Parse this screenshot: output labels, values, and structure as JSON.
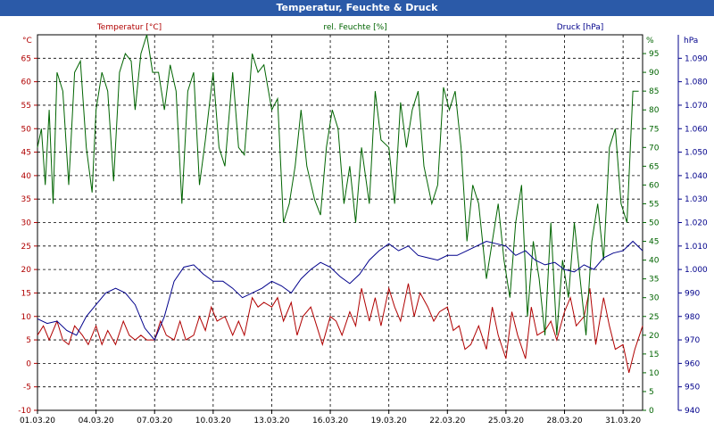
{
  "window": {
    "title": "Temperatur, Feuchte & Druck"
  },
  "colors": {
    "temperature": "#b00000",
    "humidity": "#006400",
    "pressure": "#00008b",
    "grid": "#000000"
  },
  "chart_data": {
    "type": "line",
    "title": "Temperatur, Feuchte & Druck",
    "grid": true,
    "x_ticks": [
      "01.03.20",
      "04.03.20",
      "07.03.20",
      "10.03.20",
      "13.03.20",
      "16.03.20",
      "19.03.20",
      "22.03.20",
      "25.03.20",
      "28.03.20",
      "31.03.20"
    ],
    "x_range": [
      0,
      31
    ],
    "axes": {
      "temperature": {
        "label": "Temperatur [°C]",
        "unit": "°C",
        "range": [
          -10,
          70
        ],
        "ticks": [
          -10,
          -5,
          0,
          5,
          10,
          15,
          20,
          25,
          30,
          35,
          40,
          45,
          50,
          55,
          60,
          65
        ]
      },
      "humidity": {
        "label": "rel. Feuchte [%]",
        "unit": "%",
        "range": [
          0,
          100
        ],
        "ticks": [
          0,
          5,
          10,
          15,
          20,
          25,
          30,
          35,
          40,
          45,
          50,
          55,
          60,
          65,
          70,
          75,
          80,
          85,
          90,
          95
        ]
      },
      "pressure": {
        "label": "Druck [hPa]",
        "unit": "hPa",
        "range": [
          940,
          1100
        ],
        "ticks": [
          "940",
          "950",
          "960",
          "970",
          "980",
          "990",
          "1.000",
          "1.010",
          "1.020",
          "1.030",
          "1.040",
          "1.050",
          "1.060",
          "1.070",
          "1.080",
          "1.090"
        ]
      }
    },
    "series": [
      {
        "name": "Temperatur [°C]",
        "axis": "temperature",
        "points": [
          [
            0,
            6
          ],
          [
            0.3,
            8
          ],
          [
            0.6,
            5
          ],
          [
            1,
            9
          ],
          [
            1.3,
            5
          ],
          [
            1.6,
            4
          ],
          [
            1.9,
            8
          ],
          [
            2.3,
            6
          ],
          [
            2.6,
            4
          ],
          [
            3,
            8
          ],
          [
            3.3,
            4
          ],
          [
            3.6,
            7
          ],
          [
            4,
            4
          ],
          [
            4.4,
            9
          ],
          [
            4.7,
            6
          ],
          [
            5,
            5
          ],
          [
            5.3,
            6
          ],
          [
            5.6,
            5
          ],
          [
            6,
            5
          ],
          [
            6.3,
            9
          ],
          [
            6.6,
            6
          ],
          [
            7,
            5
          ],
          [
            7.3,
            9
          ],
          [
            7.6,
            5
          ],
          [
            8,
            6
          ],
          [
            8.3,
            10
          ],
          [
            8.6,
            7
          ],
          [
            8.9,
            12
          ],
          [
            9.2,
            9
          ],
          [
            9.6,
            10
          ],
          [
            10,
            6
          ],
          [
            10.3,
            9
          ],
          [
            10.6,
            6
          ],
          [
            11,
            14
          ],
          [
            11.3,
            12
          ],
          [
            11.6,
            13
          ],
          [
            12,
            12
          ],
          [
            12.3,
            14
          ],
          [
            12.6,
            9
          ],
          [
            13,
            13
          ],
          [
            13.3,
            6
          ],
          [
            13.6,
            10
          ],
          [
            14,
            12
          ],
          [
            14.3,
            8
          ],
          [
            14.6,
            4
          ],
          [
            15,
            10
          ],
          [
            15.3,
            9
          ],
          [
            15.6,
            6
          ],
          [
            16,
            11
          ],
          [
            16.3,
            8
          ],
          [
            16.6,
            16
          ],
          [
            17,
            9
          ],
          [
            17.3,
            14
          ],
          [
            17.6,
            8
          ],
          [
            18,
            16
          ],
          [
            18.3,
            12
          ],
          [
            18.6,
            9
          ],
          [
            19,
            17
          ],
          [
            19.3,
            10
          ],
          [
            19.6,
            15
          ],
          [
            20,
            12
          ],
          [
            20.3,
            9
          ],
          [
            20.6,
            11
          ],
          [
            21,
            12
          ],
          [
            21.3,
            7
          ],
          [
            21.6,
            8
          ],
          [
            21.9,
            3
          ],
          [
            22.2,
            4
          ],
          [
            22.6,
            8
          ],
          [
            23,
            3
          ],
          [
            23.3,
            12
          ],
          [
            23.6,
            6
          ],
          [
            24,
            1
          ],
          [
            24.3,
            11
          ],
          [
            24.6,
            6
          ],
          [
            25,
            1
          ],
          [
            25.3,
            12
          ],
          [
            25.6,
            6
          ],
          [
            26,
            7
          ],
          [
            26.3,
            9
          ],
          [
            26.6,
            5
          ],
          [
            27,
            11
          ],
          [
            27.3,
            14
          ],
          [
            27.6,
            8
          ],
          [
            28,
            10
          ],
          [
            28.3,
            16
          ],
          [
            28.6,
            4
          ],
          [
            29,
            14
          ],
          [
            29.3,
            8
          ],
          [
            29.6,
            3
          ],
          [
            30,
            4
          ],
          [
            30.3,
            -2
          ],
          [
            30.6,
            3
          ],
          [
            31,
            8
          ],
          [
            31.3,
            1
          ],
          [
            31.6,
            9
          ],
          [
            32,
            4
          ]
        ]
      },
      {
        "name": "rel. Feuchte [%]",
        "axis": "humidity",
        "points": [
          [
            0,
            70
          ],
          [
            0.2,
            75
          ],
          [
            0.4,
            60
          ],
          [
            0.6,
            80
          ],
          [
            0.8,
            55
          ],
          [
            1,
            90
          ],
          [
            1.3,
            85
          ],
          [
            1.6,
            60
          ],
          [
            1.9,
            90
          ],
          [
            2.2,
            93
          ],
          [
            2.5,
            70
          ],
          [
            2.8,
            58
          ],
          [
            3,
            80
          ],
          [
            3.3,
            90
          ],
          [
            3.6,
            85
          ],
          [
            3.9,
            61
          ],
          [
            4.2,
            90
          ],
          [
            4.5,
            95
          ],
          [
            4.8,
            93
          ],
          [
            5,
            80
          ],
          [
            5.3,
            95
          ],
          [
            5.6,
            100
          ],
          [
            5.9,
            90
          ],
          [
            6.2,
            90
          ],
          [
            6.5,
            80
          ],
          [
            6.8,
            92
          ],
          [
            7.1,
            85
          ],
          [
            7.4,
            55
          ],
          [
            7.7,
            85
          ],
          [
            8,
            90
          ],
          [
            8.3,
            60
          ],
          [
            8.6,
            72
          ],
          [
            9,
            90
          ],
          [
            9.3,
            70
          ],
          [
            9.6,
            65
          ],
          [
            10,
            90
          ],
          [
            10.3,
            70
          ],
          [
            10.6,
            68
          ],
          [
            11,
            95
          ],
          [
            11.3,
            90
          ],
          [
            11.6,
            92
          ],
          [
            12,
            80
          ],
          [
            12.3,
            83
          ],
          [
            12.6,
            50
          ],
          [
            12.9,
            55
          ],
          [
            13.2,
            65
          ],
          [
            13.5,
            80
          ],
          [
            13.8,
            65
          ],
          [
            14.2,
            56
          ],
          [
            14.5,
            52
          ],
          [
            14.8,
            70
          ],
          [
            15.1,
            80
          ],
          [
            15.4,
            75
          ],
          [
            15.7,
            55
          ],
          [
            16,
            65
          ],
          [
            16.3,
            50
          ],
          [
            16.6,
            70
          ],
          [
            17,
            55
          ],
          [
            17.3,
            85
          ],
          [
            17.6,
            72
          ],
          [
            18,
            70
          ],
          [
            18.3,
            55
          ],
          [
            18.6,
            82
          ],
          [
            18.9,
            70
          ],
          [
            19.2,
            80
          ],
          [
            19.5,
            85
          ],
          [
            19.8,
            65
          ],
          [
            20.2,
            55
          ],
          [
            20.5,
            60
          ],
          [
            20.8,
            86
          ],
          [
            21.1,
            80
          ],
          [
            21.4,
            85
          ],
          [
            21.7,
            70
          ],
          [
            22,
            45
          ],
          [
            22.3,
            60
          ],
          [
            22.6,
            55
          ],
          [
            23,
            35
          ],
          [
            23.3,
            45
          ],
          [
            23.6,
            55
          ],
          [
            23.9,
            40
          ],
          [
            24.2,
            30
          ],
          [
            24.5,
            50
          ],
          [
            24.8,
            60
          ],
          [
            25.1,
            25
          ],
          [
            25.4,
            45
          ],
          [
            25.7,
            35
          ],
          [
            26,
            20
          ],
          [
            26.3,
            50
          ],
          [
            26.6,
            20
          ],
          [
            26.9,
            40
          ],
          [
            27.2,
            30
          ],
          [
            27.5,
            50
          ],
          [
            27.8,
            35
          ],
          [
            28.1,
            20
          ],
          [
            28.4,
            45
          ],
          [
            28.7,
            55
          ],
          [
            29,
            40
          ],
          [
            29.3,
            70
          ],
          [
            29.6,
            75
          ],
          [
            29.9,
            55
          ],
          [
            30.2,
            50
          ],
          [
            30.5,
            85
          ],
          [
            30.8,
            85
          ],
          [
            31.1,
            40
          ],
          [
            31.4,
            55
          ],
          [
            31.7,
            35
          ],
          [
            32,
            45
          ]
        ]
      },
      {
        "name": "Druck [hPa]",
        "axis": "pressure",
        "points": [
          [
            0,
            979
          ],
          [
            0.5,
            977
          ],
          [
            1,
            978
          ],
          [
            1.5,
            974
          ],
          [
            2,
            972
          ],
          [
            2.5,
            980
          ],
          [
            3,
            985
          ],
          [
            3.5,
            990
          ],
          [
            4,
            992
          ],
          [
            4.5,
            990
          ],
          [
            5,
            985
          ],
          [
            5.5,
            975
          ],
          [
            6,
            970
          ],
          [
            6.5,
            980
          ],
          [
            7,
            995
          ],
          [
            7.5,
            1001
          ],
          [
            8,
            1002
          ],
          [
            8.5,
            998
          ],
          [
            9,
            995
          ],
          [
            9.5,
            995
          ],
          [
            10,
            992
          ],
          [
            10.5,
            988
          ],
          [
            11,
            990
          ],
          [
            11.5,
            992
          ],
          [
            12,
            995
          ],
          [
            12.5,
            993
          ],
          [
            13,
            990
          ],
          [
            13.5,
            996
          ],
          [
            14,
            1000
          ],
          [
            14.5,
            1003
          ],
          [
            15,
            1001
          ],
          [
            15.5,
            997
          ],
          [
            16,
            994
          ],
          [
            16.5,
            998
          ],
          [
            17,
            1004
          ],
          [
            17.5,
            1008
          ],
          [
            18,
            1011
          ],
          [
            18.5,
            1008
          ],
          [
            19,
            1010
          ],
          [
            19.5,
            1006
          ],
          [
            20,
            1005
          ],
          [
            20.5,
            1004
          ],
          [
            21,
            1006
          ],
          [
            21.5,
            1006
          ],
          [
            22,
            1008
          ],
          [
            22.5,
            1010
          ],
          [
            23,
            1012
          ],
          [
            23.5,
            1011
          ],
          [
            24,
            1010
          ],
          [
            24.5,
            1006
          ],
          [
            25,
            1008
          ],
          [
            25.5,
            1004
          ],
          [
            26,
            1002
          ],
          [
            26.5,
            1003
          ],
          [
            27,
            1000
          ],
          [
            27.5,
            999
          ],
          [
            28,
            1002
          ],
          [
            28.5,
            1000
          ],
          [
            29,
            1005
          ],
          [
            29.5,
            1007
          ],
          [
            30,
            1008
          ],
          [
            30.5,
            1012
          ],
          [
            31,
            1008
          ],
          [
            31.5,
            1009
          ],
          [
            32,
            1010
          ]
        ]
      }
    ]
  }
}
